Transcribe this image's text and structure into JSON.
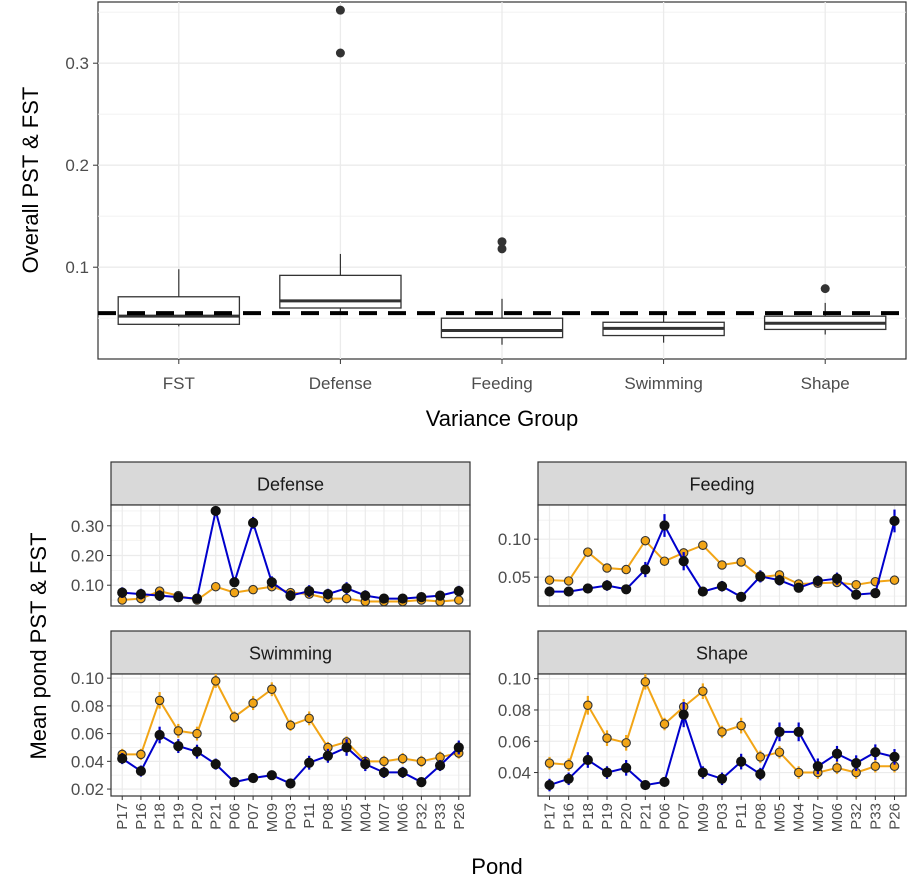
{
  "chart_data": [
    {
      "type": "box",
      "ylabel": "Overall PST & FST",
      "xlabel": "Variance Group",
      "categories": [
        "FST",
        "Defense",
        "Feeding",
        "Swimming",
        "Shape"
      ],
      "ylim": [
        0.01,
        0.36
      ],
      "yticks": [
        0.1,
        0.2,
        0.3
      ],
      "ytick_labels": [
        "0.1",
        "0.2",
        "0.3"
      ],
      "reference_line": 0.055,
      "boxes": [
        {
          "whisker_low": 0.042,
          "q1": 0.044,
          "median": 0.052,
          "q3": 0.071,
          "whisker_high": 0.098,
          "outliers": []
        },
        {
          "whisker_low": 0.056,
          "q1": 0.06,
          "median": 0.067,
          "q3": 0.092,
          "whisker_high": 0.113,
          "outliers": [
            0.31,
            0.352
          ]
        },
        {
          "whisker_low": 0.024,
          "q1": 0.031,
          "median": 0.038,
          "q3": 0.05,
          "whisker_high": 0.069,
          "outliers": [
            0.118,
            0.125
          ]
        },
        {
          "whisker_low": 0.026,
          "q1": 0.033,
          "median": 0.04,
          "q3": 0.046,
          "whisker_high": 0.054,
          "outliers": []
        },
        {
          "whisker_low": 0.034,
          "q1": 0.039,
          "median": 0.045,
          "q3": 0.052,
          "whisker_high": 0.065,
          "outliers": [
            0.079
          ]
        }
      ]
    },
    {
      "type": "line",
      "layout": "facet",
      "ylabel": "Mean pond PST & FST",
      "xlabel": "Pond",
      "x": [
        "P17",
        "P16",
        "P18",
        "P19",
        "P20",
        "P21",
        "P06",
        "P07",
        "M09",
        "P03",
        "P11",
        "P08",
        "M05",
        "M04",
        "M07",
        "M06",
        "P32",
        "P33",
        "P26"
      ],
      "series_colors": [
        "#0000cc",
        "#f2a516"
      ],
      "panels": [
        {
          "title": "Defense",
          "ylim": [
            0.03,
            0.37
          ],
          "yticks": [
            0.1,
            0.2,
            0.3
          ],
          "ytick_labels": [
            "0.10",
            "0.20",
            "0.30"
          ],
          "series": [
            {
              "values": [
                0.075,
                0.07,
                0.065,
                0.06,
                0.055,
                0.35,
                0.11,
                0.31,
                0.11,
                0.065,
                0.08,
                0.07,
                0.09,
                0.065,
                0.055,
                0.055,
                0.06,
                0.065,
                0.08
              ],
              "errors": [
                0.018,
                0.018,
                0.018,
                0.015,
                0.015,
                0.015,
                0.015,
                0.02,
                0.02,
                0.018,
                0.02,
                0.018,
                0.02,
                0.018,
                0.015,
                0.015,
                0.015,
                0.015,
                0.018
              ]
            },
            {
              "values": [
                0.05,
                0.055,
                0.08,
                0.065,
                0.05,
                0.095,
                0.075,
                0.085,
                0.095,
                0.075,
                0.07,
                0.055,
                0.055,
                0.045,
                0.045,
                0.045,
                0.05,
                0.045,
                0.05
              ],
              "errors": [
                0.008,
                0.008,
                0.01,
                0.008,
                0.008,
                0.01,
                0.008,
                0.01,
                0.01,
                0.008,
                0.008,
                0.008,
                0.008,
                0.008,
                0.008,
                0.008,
                0.008,
                0.008,
                0.008
              ]
            }
          ]
        },
        {
          "title": "Feeding",
          "ylim": [
            0.012,
            0.145
          ],
          "yticks": [
            0.05,
            0.1
          ],
          "ytick_labels": [
            "0.05",
            "0.10"
          ],
          "series": [
            {
              "values": [
                0.031,
                0.031,
                0.035,
                0.039,
                0.034,
                0.06,
                0.118,
                0.071,
                0.031,
                0.038,
                0.024,
                0.051,
                0.046,
                0.036,
                0.045,
                0.048,
                0.027,
                0.029,
                0.124
              ],
              "errors": [
                0.006,
                0.006,
                0.006,
                0.007,
                0.006,
                0.01,
                0.015,
                0.012,
                0.006,
                0.007,
                0.004,
                0.008,
                0.007,
                0.006,
                0.007,
                0.008,
                0.005,
                0.005,
                0.015
              ]
            },
            {
              "values": [
                0.046,
                0.045,
                0.083,
                0.062,
                0.06,
                0.098,
                0.071,
                0.082,
                0.092,
                0.066,
                0.07,
                0.05,
                0.053,
                0.041,
                0.042,
                0.043,
                0.04,
                0.044,
                0.046
              ],
              "errors": [
                0.004,
                0.004,
                0.006,
                0.005,
                0.005,
                0.006,
                0.005,
                0.006,
                0.006,
                0.005,
                0.005,
                0.004,
                0.004,
                0.004,
                0.004,
                0.004,
                0.004,
                0.004,
                0.004
              ]
            }
          ]
        },
        {
          "title": "Swimming",
          "ylim": [
            0.015,
            0.103
          ],
          "yticks": [
            0.02,
            0.04,
            0.06,
            0.08,
            0.1
          ],
          "ytick_labels": [
            "0.02",
            "0.04",
            "0.06",
            "0.08",
            "0.10"
          ],
          "series": [
            {
              "values": [
                0.042,
                0.033,
                0.059,
                0.051,
                0.047,
                0.038,
                0.025,
                0.028,
                0.03,
                0.024,
                0.039,
                0.044,
                0.05,
                0.038,
                0.032,
                0.032,
                0.025,
                0.037,
                0.05
              ],
              "errors": [
                0.004,
                0.004,
                0.006,
                0.005,
                0.005,
                0.004,
                0.003,
                0.003,
                0.003,
                0.003,
                0.005,
                0.005,
                0.006,
                0.005,
                0.004,
                0.004,
                0.003,
                0.004,
                0.005
              ]
            },
            {
              "values": [
                0.045,
                0.045,
                0.084,
                0.062,
                0.06,
                0.098,
                0.072,
                0.082,
                0.092,
                0.066,
                0.071,
                0.05,
                0.054,
                0.04,
                0.04,
                0.042,
                0.04,
                0.043,
                0.046
              ],
              "errors": [
                0.004,
                0.004,
                0.006,
                0.005,
                0.005,
                0.005,
                0.004,
                0.005,
                0.005,
                0.004,
                0.005,
                0.004,
                0.004,
                0.004,
                0.004,
                0.004,
                0.004,
                0.004,
                0.004
              ]
            }
          ]
        },
        {
          "title": "Shape",
          "ylim": [
            0.025,
            0.103
          ],
          "yticks": [
            0.04,
            0.06,
            0.08,
            0.1
          ],
          "ytick_labels": [
            "0.04",
            "0.06",
            "0.08",
            "0.10"
          ],
          "series": [
            {
              "values": [
                0.032,
                0.036,
                0.048,
                0.04,
                0.043,
                0.032,
                0.034,
                0.077,
                0.04,
                0.036,
                0.047,
                0.039,
                0.066,
                0.066,
                0.044,
                0.052,
                0.046,
                0.053,
                0.05
              ],
              "errors": [
                0.004,
                0.004,
                0.005,
                0.004,
                0.005,
                0.003,
                0.003,
                0.008,
                0.004,
                0.004,
                0.005,
                0.004,
                0.006,
                0.006,
                0.005,
                0.005,
                0.005,
                0.005,
                0.005
              ]
            },
            {
              "values": [
                0.046,
                0.045,
                0.083,
                0.062,
                0.059,
                0.098,
                0.071,
                0.082,
                0.092,
                0.066,
                0.07,
                0.05,
                0.053,
                0.04,
                0.04,
                0.043,
                0.04,
                0.044,
                0.044
              ],
              "errors": [
                0.004,
                0.004,
                0.006,
                0.005,
                0.005,
                0.005,
                0.004,
                0.005,
                0.005,
                0.004,
                0.005,
                0.004,
                0.004,
                0.004,
                0.004,
                0.004,
                0.004,
                0.004,
                0.004
              ]
            }
          ]
        }
      ]
    }
  ]
}
